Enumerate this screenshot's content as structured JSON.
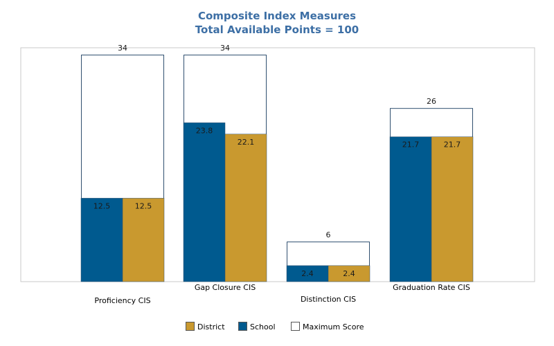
{
  "chart_data": {
    "type": "bar",
    "title": "Composite Index Measures",
    "subtitle": "Total Available Points = 100",
    "categories": [
      "Proficiency CIS",
      "Gap Closure CIS",
      "Distinction CIS",
      "Graduation Rate CIS"
    ],
    "max_scores": [
      34,
      34,
      6,
      26
    ],
    "series": [
      {
        "name": "School",
        "values": [
          12.5,
          23.8,
          2.4,
          21.7
        ],
        "color": "#005a8f"
      },
      {
        "name": "District",
        "values": [
          12.5,
          22.1,
          2.4,
          21.7
        ],
        "color": "#c9992f"
      }
    ],
    "legend": {
      "position": "bottom",
      "items": [
        {
          "name": "District",
          "color": "#c9992f"
        },
        {
          "name": "School",
          "color": "#005a8f"
        },
        {
          "name": "Maximum Score",
          "color": "#ffffff"
        }
      ]
    },
    "ylim": [
      0,
      34
    ],
    "grid": false,
    "xlabel": "",
    "ylabel": ""
  }
}
